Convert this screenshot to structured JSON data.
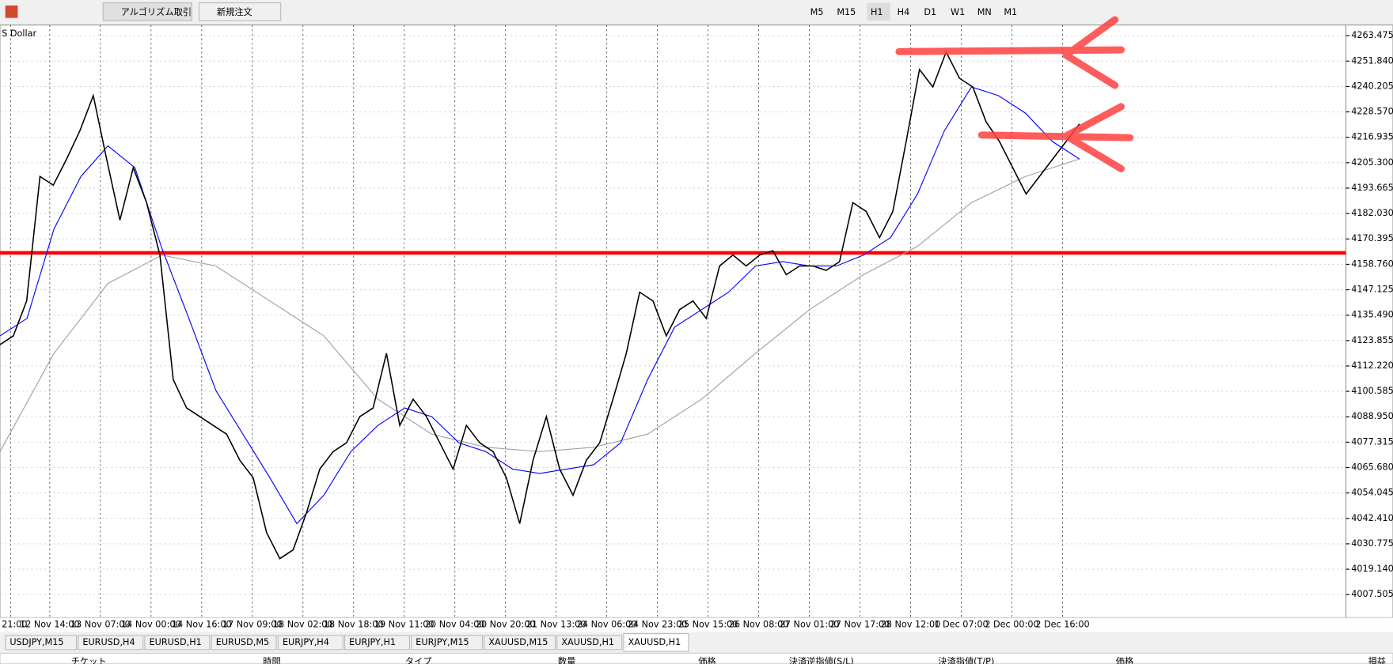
{
  "toolbar": {
    "buttons": [
      "アルゴリズム取引",
      "新規注文"
    ],
    "timeframes": [
      "M5",
      "M15",
      "H1",
      "H4",
      "D1",
      "W1",
      "MN",
      "M1"
    ],
    "active_timeframe": "H1"
  },
  "chart_data": {
    "type": "line",
    "title": "S Dollar",
    "time_labels": [
      "21:00",
      "12 Nov 14:00",
      "13 Nov 07:00",
      "14 Nov 00:00",
      "14 Nov 16:00",
      "17 Nov 09:00",
      "18 Nov 02:00",
      "18 Nov 18:00",
      "19 Nov 11:00",
      "20 Nov 04:00",
      "20 Nov 20:00",
      "21 Nov 13:00",
      "24 Nov 06:00",
      "24 Nov 23:00",
      "25 Nov 15:00",
      "26 Nov 08:00",
      "27 Nov 01:00",
      "27 Nov 17:00",
      "28 Nov 12:00",
      "1 Dec 07:00",
      "2 Dec 00:00",
      "2 Dec 16:00"
    ],
    "series": [
      {
        "color": "#000000",
        "values": [
          4122,
          4126,
          4142,
          4199,
          4195,
          4207,
          4220,
          4236,
          4207,
          4179,
          4203,
          4187,
          4163,
          4106,
          4093,
          4089,
          4085,
          4081,
          4069,
          4061,
          4036,
          4024,
          4028,
          4045,
          4065,
          4073,
          4077,
          4089,
          4093,
          4118,
          4085,
          4097,
          4089,
          4077,
          4065,
          4085,
          4077,
          4073,
          4061,
          4040,
          4069,
          4089,
          4065,
          4053,
          4069,
          4077,
          4097,
          4118,
          4146,
          4142,
          4126,
          4138,
          4142,
          4134,
          4158,
          4163,
          4158,
          4163,
          4165,
          4154,
          4158,
          4158,
          4156,
          4160,
          4187,
          4183,
          4171,
          4183,
          4215,
          4248,
          4240,
          4256,
          4244,
          4240,
          4224,
          4215,
          4203,
          4191,
          4199,
          4207,
          4215,
          4223
        ]
      },
      {
        "color": "#0000ff",
        "values": [
          4126,
          4134,
          4175,
          4199,
          4213,
          4203,
          4166,
          4134,
          4101,
          4081,
          4061,
          4040,
          4053,
          4073,
          4085,
          4093,
          4089,
          4077,
          4073,
          4065,
          4063,
          4065,
          4067,
          4077,
          4106,
          4130,
          4138,
          4146,
          4158,
          4160,
          4158,
          4158,
          4163,
          4171,
          4191,
          4220,
          4240,
          4236,
          4228,
          4215,
          4207
        ]
      },
      {
        "color": "#a0a0a0",
        "values": [
          4073,
          4118,
          4150,
          4163,
          4158,
          4142,
          4126,
          4097,
          4081,
          4075,
          4073,
          4075,
          4081,
          4097,
          4118,
          4138,
          4154,
          4167,
          4187,
          4199,
          4207
        ]
      }
    ],
    "hlines": [
      {
        "value": 4164,
        "color": "#ff0000"
      }
    ],
    "ylim": [
      3996.93,
      4268.36
    ],
    "yticks": [
      {
        "value": 4263.475,
        "label": "4263.475"
      },
      {
        "value": 4251.84,
        "label": "4251.840"
      },
      {
        "value": 4240.205,
        "label": "4240.205"
      },
      {
        "value": 4228.57,
        "label": "4228.570"
      },
      {
        "value": 4216.935,
        "label": "4216.935"
      },
      {
        "value": 4205.3,
        "label": "4205.300"
      },
      {
        "value": 4193.665,
        "label": "4193.665"
      },
      {
        "value": 4182.03,
        "label": "4182.030"
      },
      {
        "value": 4170.395,
        "label": "4170.395"
      },
      {
        "value": 4158.76,
        "label": "4158.760"
      },
      {
        "value": 4147.125,
        "label": "4147.125"
      },
      {
        "value": 4135.49,
        "label": "4135.490"
      },
      {
        "value": 4123.855,
        "label": "4123.855"
      },
      {
        "value": 4112.22,
        "label": "4112.220"
      },
      {
        "value": 4100.585,
        "label": "4100.585"
      },
      {
        "value": 4088.95,
        "label": "4088.950"
      },
      {
        "value": 4077.315,
        "label": "4077.315"
      },
      {
        "value": 4065.68,
        "label": "4065.680"
      },
      {
        "value": 4054.045,
        "label": "4054.045"
      },
      {
        "value": 4042.41,
        "label": "4042.410"
      },
      {
        "value": 4030.775,
        "label": "4030.775"
      },
      {
        "value": 4019.14,
        "label": "4019.140"
      },
      {
        "value": 4007.505,
        "label": "4007.505"
      }
    ],
    "grid": true
  },
  "tabs": {
    "items": [
      "USDJPY,M15",
      "EURUSD,H4",
      "EURUSD,H1",
      "EURUSD,M5",
      "EURJPY,H4",
      "EURJPY,H1",
      "EURJPY,M15",
      "XAUUSD,M15",
      "XAUUSD,H1",
      "XAUUSD,H1"
    ],
    "active": 9
  },
  "table": {
    "headers": [
      "チケット",
      "時間",
      "タイプ",
      "数量",
      "価格",
      "決済逆指値(S/L)",
      "決済指値(T/P)",
      "価格",
      "損益"
    ]
  }
}
